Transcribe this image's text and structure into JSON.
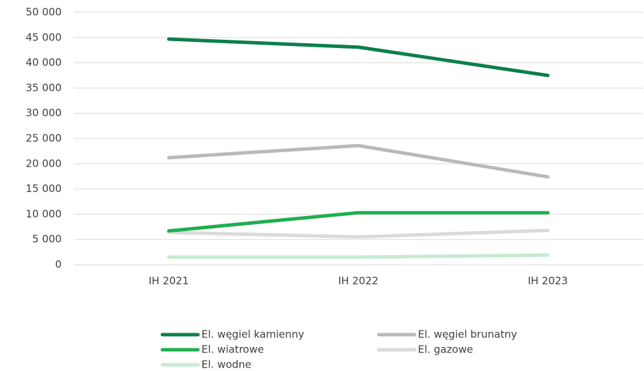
{
  "chart_data": {
    "type": "line",
    "categories": [
      "IH 2021",
      "IH 2022",
      "IH 2023"
    ],
    "series": [
      {
        "name": "El. węgiel kamienny",
        "color": "#0b7f4b",
        "values": [
          44700,
          43100,
          37500
        ]
      },
      {
        "name": "El. węgiel brunatny",
        "color": "#b9b9b9",
        "values": [
          21200,
          23600,
          17400
        ]
      },
      {
        "name": "El. wiatrowe",
        "color": "#1fae4f",
        "values": [
          6700,
          10300,
          10300
        ]
      },
      {
        "name": "El. gazowe",
        "color": "#dadada",
        "values": [
          6400,
          5500,
          6800
        ]
      },
      {
        "name": "El. wodne",
        "color": "#c6ead4",
        "values": [
          1500,
          1500,
          1900
        ]
      }
    ],
    "ylim": [
      0,
      50000
    ],
    "yticks": [
      0,
      {
        "value": 5000,
        "label": "5 000"
      },
      {
        "value": 10000,
        "label": "10 000"
      },
      {
        "value": 15000,
        "label": "15 000"
      },
      {
        "value": 20000,
        "label": "20 000"
      },
      {
        "value": 25000,
        "label": "25 000"
      },
      {
        "value": 30000,
        "label": "30 000"
      },
      {
        "value": 35000,
        "label": "35 000"
      },
      {
        "value": 40000,
        "label": "40 000"
      },
      {
        "value": 45000,
        "label": "45 000"
      },
      {
        "value": 50000,
        "label": "50 000"
      }
    ],
    "grid": true
  }
}
